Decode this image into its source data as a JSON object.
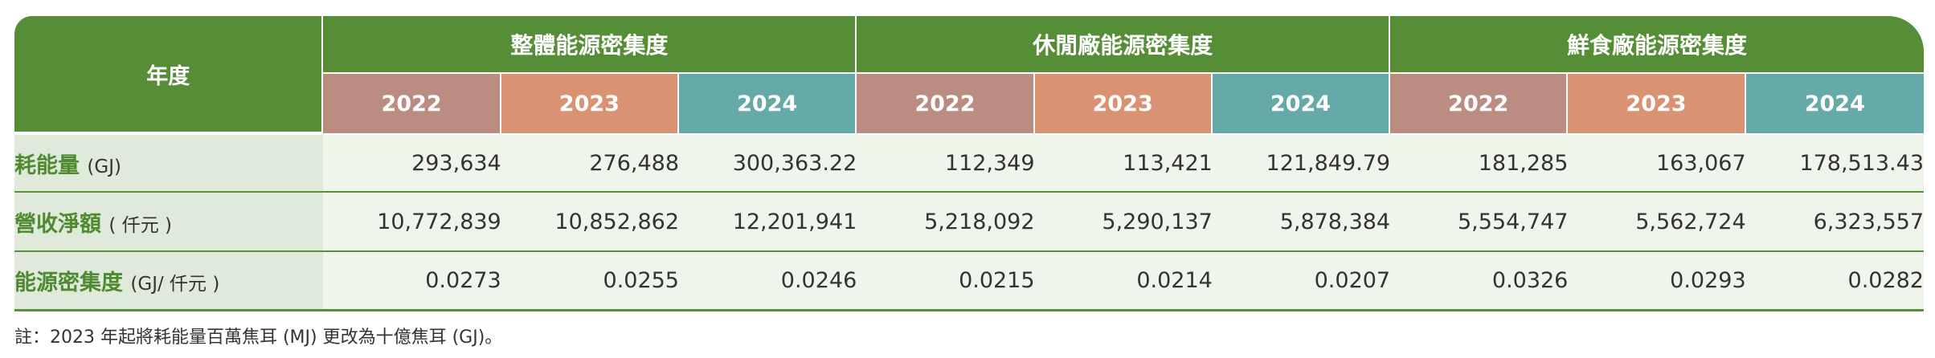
{
  "table": {
    "corner_label": "年度",
    "groups": [
      "整體能源密集度",
      "休閒廠能源密集度",
      "鮮食廠能源密集度"
    ],
    "years": [
      "2022",
      "2023",
      "2024"
    ],
    "rows": [
      {
        "label": "耗能量",
        "unit": "(GJ)",
        "values": [
          "293,634",
          "276,488",
          "300,363.22",
          "112,349",
          "113,421",
          "121,849.79",
          "181,285",
          "163,067",
          "178,513.43"
        ]
      },
      {
        "label": "營收淨額",
        "unit": "( 仟元 )",
        "values": [
          "10,772,839",
          "10,852,862",
          "12,201,941",
          "5,218,092",
          "5,290,137",
          "5,878,384",
          "5,554,747",
          "5,562,724",
          "6,323,557"
        ]
      },
      {
        "label": "能源密集度",
        "unit": "(GJ/ 仟元 )",
        "values": [
          "0.0273",
          "0.0255",
          "0.0246",
          "0.0215",
          "0.0214",
          "0.0207",
          "0.0326",
          "0.0293",
          "0.0282"
        ]
      }
    ],
    "colors": {
      "header_green": "#568e38",
      "year_2022": "#bb8d82",
      "year_2023": "#d99272",
      "year_2024": "#65a9a8",
      "label_bg": "#dfeada",
      "value_bg": "#f0f5ec"
    }
  },
  "note": "註：2023 年起將耗能量百萬焦耳 (MJ) 更改為十億焦耳 (GJ)。"
}
